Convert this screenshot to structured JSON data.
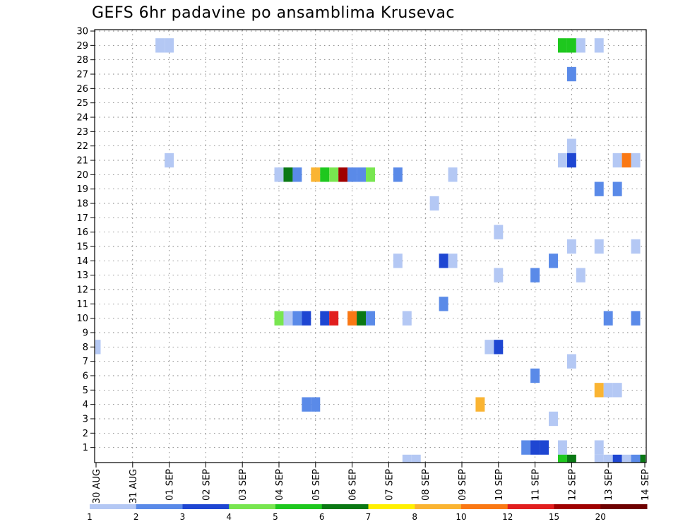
{
  "chart_data": {
    "type": "heatmap",
    "title": "GEFS 6hr padavine po ansamblima Krusevac",
    "x_tick_labels": [
      "30 AUG",
      "31 AUG",
      "01 SEP",
      "02 SEP",
      "03 SEP",
      "04 SEP",
      "05 SEP",
      "06 SEP",
      "07 SEP",
      "08 SEP",
      "09 SEP",
      "10 SEP",
      "11 SEP",
      "12 SEP",
      "13 SEP",
      "14 SEP"
    ],
    "y_tick_labels": [
      "1",
      "2",
      "3",
      "4",
      "5",
      "6",
      "7",
      "8",
      "9",
      "10",
      "11",
      "12",
      "13",
      "14",
      "15",
      "16",
      "17",
      "18",
      "19",
      "20",
      "21",
      "22",
      "23",
      "24",
      "25",
      "26",
      "27",
      "28",
      "29",
      "30"
    ],
    "x_range_days": [
      0,
      15
    ],
    "y_range_members": [
      0,
      30
    ],
    "grid": "dotted",
    "colorbar": {
      "position": "bottom",
      "labels": [
        "1",
        "2",
        "3",
        "4",
        "5",
        "6",
        "7",
        "8",
        "10",
        "12",
        "15",
        "20"
      ],
      "colors": [
        "#b4c8f4",
        "#5a8ae8",
        "#1e46d2",
        "#78e650",
        "#1ec81e",
        "#0a7814",
        "#fff000",
        "#fab432",
        "#fa7814",
        "#e11e1e",
        "#a00000",
        "#6e0000"
      ]
    },
    "colorbar_bins": [
      {
        "label": "1-2",
        "color": "#b4c8f4"
      },
      {
        "label": "2-3",
        "color": "#5a8ae8"
      },
      {
        "label": "3-4",
        "color": "#1e46d2"
      },
      {
        "label": "4-5",
        "color": "#78e650"
      },
      {
        "label": "5-6",
        "color": "#1ec81e"
      },
      {
        "label": "6-7",
        "color": "#0a7814"
      },
      {
        "label": "7-8",
        "color": "#fff000"
      },
      {
        "label": "8-10",
        "color": "#fab432"
      },
      {
        "label": "10-12",
        "color": "#fa7814"
      },
      {
        "label": "12-15",
        "color": "#e11e1e"
      },
      {
        "label": "15-20",
        "color": "#a00000"
      },
      {
        "label": ">20",
        "color": "#6e0000"
      }
    ],
    "cells_note": "each cell: [day offset from 30 AUG 00z, ensemble member (0 = control), precipitation class 1..12]",
    "cells": [
      [
        1.75,
        29,
        1
      ],
      [
        2.0,
        29,
        1
      ],
      [
        12.75,
        29,
        5
      ],
      [
        13.0,
        29,
        5
      ],
      [
        13.25,
        29,
        1
      ],
      [
        13.75,
        29,
        1
      ],
      [
        13.0,
        27,
        2
      ],
      [
        13.0,
        22,
        1
      ],
      [
        2.0,
        21,
        1
      ],
      [
        13.0,
        21,
        3
      ],
      [
        12.75,
        21,
        1
      ],
      [
        14.25,
        21,
        1
      ],
      [
        14.5,
        21,
        9
      ],
      [
        14.75,
        21,
        1
      ],
      [
        5.0,
        20,
        1
      ],
      [
        5.25,
        20,
        6
      ],
      [
        5.5,
        20,
        2
      ],
      [
        6.0,
        20,
        8
      ],
      [
        6.25,
        20,
        5
      ],
      [
        6.5,
        20,
        4
      ],
      [
        6.75,
        20,
        11
      ],
      [
        7.0,
        20,
        2
      ],
      [
        7.25,
        20,
        2
      ],
      [
        7.5,
        20,
        4
      ],
      [
        8.25,
        20,
        2
      ],
      [
        9.75,
        20,
        1
      ],
      [
        13.75,
        19,
        2
      ],
      [
        14.25,
        19,
        2
      ],
      [
        9.25,
        18,
        1
      ],
      [
        11.0,
        16,
        1
      ],
      [
        13.0,
        15,
        1
      ],
      [
        13.75,
        15,
        1
      ],
      [
        14.75,
        15,
        1
      ],
      [
        8.25,
        14,
        1
      ],
      [
        9.5,
        14,
        3
      ],
      [
        9.75,
        14,
        1
      ],
      [
        12.5,
        14,
        2
      ],
      [
        11.0,
        13,
        1
      ],
      [
        12.0,
        13,
        2
      ],
      [
        13.25,
        13,
        1
      ],
      [
        9.5,
        11,
        2
      ],
      [
        5.0,
        10,
        4
      ],
      [
        5.25,
        10,
        1
      ],
      [
        5.5,
        10,
        2
      ],
      [
        5.75,
        10,
        3
      ],
      [
        6.25,
        10,
        3
      ],
      [
        6.5,
        10,
        10
      ],
      [
        7.0,
        10,
        9
      ],
      [
        7.25,
        10,
        6
      ],
      [
        7.5,
        10,
        2
      ],
      [
        8.5,
        10,
        1
      ],
      [
        14.0,
        10,
        2
      ],
      [
        14.75,
        10,
        2
      ],
      [
        0.0,
        8,
        1
      ],
      [
        10.75,
        8,
        1
      ],
      [
        11.0,
        8,
        3
      ],
      [
        13.0,
        7,
        1
      ],
      [
        12.0,
        6,
        2
      ],
      [
        13.75,
        5,
        8
      ],
      [
        14.0,
        5,
        1
      ],
      [
        14.25,
        5,
        1
      ],
      [
        5.75,
        4,
        2
      ],
      [
        6.0,
        4,
        2
      ],
      [
        10.5,
        4,
        8
      ],
      [
        12.5,
        3,
        1
      ],
      [
        11.75,
        1,
        2
      ],
      [
        12.0,
        1,
        3
      ],
      [
        12.25,
        1,
        3
      ],
      [
        12.75,
        1,
        1
      ],
      [
        13.75,
        1,
        1
      ],
      [
        8.5,
        0,
        1
      ],
      [
        8.75,
        0,
        1
      ],
      [
        12.75,
        0,
        5
      ],
      [
        13.0,
        0,
        6
      ],
      [
        13.75,
        0,
        1
      ],
      [
        14.0,
        0,
        1
      ],
      [
        14.25,
        0,
        3
      ],
      [
        14.5,
        0,
        1
      ],
      [
        14.75,
        0,
        2
      ],
      [
        15.0,
        0,
        6
      ]
    ]
  }
}
